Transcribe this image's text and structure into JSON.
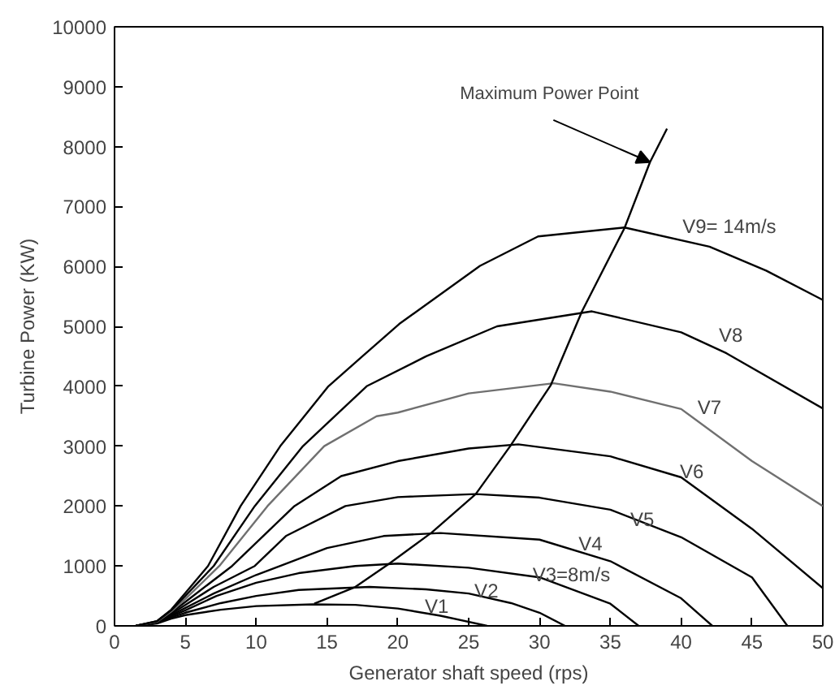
{
  "chart_data": {
    "type": "line",
    "xlabel": "Generator shaft speed (rps)",
    "ylabel": "Turbine Power (KW)",
    "xlim": [
      0,
      50
    ],
    "ylim": [
      0,
      10000
    ],
    "xticks": [
      0,
      5,
      10,
      15,
      20,
      25,
      30,
      35,
      40,
      45,
      50
    ],
    "yticks": [
      0,
      1000,
      2000,
      3000,
      4000,
      5000,
      6000,
      7000,
      8000,
      9000,
      10000
    ],
    "grid": false,
    "legend": false,
    "marker": "none",
    "line_style": "solid",
    "series": [
      {
        "name": "V1",
        "color": "#000000",
        "x": [
          1.5,
          3,
          4,
          5,
          7.5,
          10,
          14,
          17,
          20,
          23,
          26.3
        ],
        "values": [
          0,
          40,
          120,
          180,
          270,
          330,
          360,
          350,
          290,
          170,
          0
        ]
      },
      {
        "name": "V2",
        "color": "#000000",
        "x": [
          1.5,
          3,
          4,
          5,
          7.5,
          10,
          13,
          18,
          22,
          25,
          28,
          30,
          31.8
        ],
        "values": [
          0,
          50,
          140,
          220,
          380,
          500,
          600,
          650,
          610,
          540,
          380,
          220,
          0
        ]
      },
      {
        "name": "V3=8m/s",
        "color": "#000000",
        "x": [
          1.5,
          3,
          4,
          5,
          7.2,
          10,
          13,
          17,
          20,
          25,
          30,
          35,
          37
        ],
        "values": [
          0,
          50,
          160,
          260,
          500,
          720,
          880,
          1000,
          1040,
          970,
          810,
          370,
          0
        ]
      },
      {
        "name": "V4",
        "color": "#000000",
        "x": [
          1.5,
          3,
          4,
          5,
          7,
          10,
          11.7,
          15,
          19,
          23,
          30,
          35,
          40,
          42.2
        ],
        "values": [
          0,
          60,
          180,
          300,
          540,
          850,
          1000,
          1300,
          1500,
          1550,
          1440,
          1080,
          460,
          0
        ]
      },
      {
        "name": "V5",
        "color": "#000000",
        "x": [
          1.5,
          3,
          4,
          5,
          7,
          9.9,
          12.1,
          16.3,
          20,
          25.5,
          30,
          35,
          40,
          45,
          47.5
        ],
        "values": [
          0,
          60,
          200,
          350,
          650,
          1000,
          1500,
          2000,
          2150,
          2200,
          2140,
          1940,
          1480,
          810,
          0
        ]
      },
      {
        "name": "V6",
        "color": "#000000",
        "x": [
          1.5,
          3,
          4,
          5,
          8.3,
          12.7,
          16,
          20,
          25,
          28.5,
          35,
          40,
          45,
          50
        ],
        "values": [
          0,
          70,
          220,
          400,
          1000,
          2000,
          2500,
          2750,
          2960,
          3030,
          2830,
          2480,
          1620,
          630
        ]
      },
      {
        "name": "V7",
        "color": "#707070",
        "x": [
          1.5,
          3,
          4,
          5,
          7.4,
          10.8,
          14.8,
          18.5,
          20,
          25,
          31,
          35,
          40,
          45,
          50
        ],
        "values": [
          0,
          70,
          240,
          450,
          1000,
          2000,
          3000,
          3500,
          3560,
          3880,
          4050,
          3910,
          3620,
          2750,
          2000
        ]
      },
      {
        "name": "V8",
        "color": "#000000",
        "x": [
          1.5,
          3,
          4,
          5,
          7,
          9.9,
          13.3,
          17.8,
          22,
          27,
          33.7,
          40,
          43.2,
          50
        ],
        "values": [
          0,
          80,
          260,
          500,
          1000,
          2000,
          3000,
          4000,
          4500,
          5000,
          5250,
          4900,
          4550,
          3630
        ]
      },
      {
        "name": "V9= 14m/s",
        "color": "#000000",
        "x": [
          1.5,
          3,
          4,
          5,
          6.6,
          8.9,
          11.7,
          15.1,
          17.5,
          20.1,
          25.8,
          29.9,
          36,
          42,
          46,
          50
        ],
        "values": [
          0,
          80,
          270,
          550,
          1000,
          2000,
          3000,
          4000,
          4500,
          5040,
          6010,
          6500,
          6650,
          6330,
          5930,
          5440
        ]
      },
      {
        "color": "#000000",
        "x": [
          14.1,
          17,
          19.4,
          22.4,
          25.5,
          27.9,
          30.8,
          33,
          36,
          37.8,
          39
        ],
        "values": [
          370,
          650,
          1040,
          1560,
          2200,
          2990,
          4020,
          5250,
          6640,
          7740,
          8300
        ]
      }
    ],
    "annotations": [
      {
        "text": "Maximum Power Point",
        "x": 37.8,
        "y": 7740
      }
    ]
  }
}
